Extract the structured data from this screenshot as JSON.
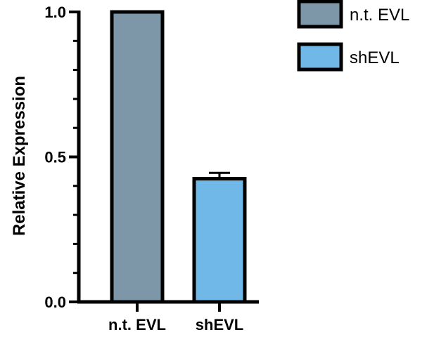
{
  "chart_data": {
    "type": "bar",
    "title": "",
    "xlabel": "",
    "ylabel": "Relative Expression",
    "categories": [
      "n.t. EVL",
      "shEVL"
    ],
    "values": [
      1.0,
      0.425
    ],
    "errors": [
      null,
      0.02
    ],
    "colors": [
      "#7d97a8",
      "#6fb8e8"
    ],
    "ylim": [
      0,
      1.0
    ],
    "yticks": [
      0.0,
      0.5,
      1.0
    ],
    "ytick_labels": [
      "0.0",
      "0.5",
      "1.0"
    ],
    "grid": false,
    "legend": {
      "placement": "top-right",
      "entries": [
        {
          "label": "n.t. EVL",
          "color": "#7d97a8"
        },
        {
          "label": "shEVL",
          "color": "#6fb8e8"
        }
      ]
    }
  }
}
